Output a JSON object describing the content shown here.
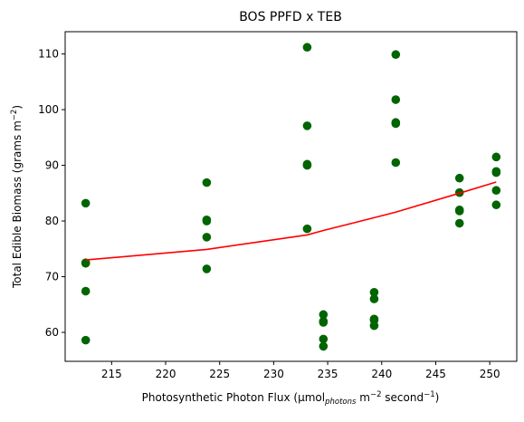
{
  "chart_data": {
    "type": "scatter",
    "title": "BOS PPFD x TEB",
    "xlabel": {
      "text": "Photosynthetic Photon Flux (μmol",
      "sub": "photons",
      "mid": " m",
      "sup1": "−2",
      "mid2": " second",
      "sup2": "−1",
      "end": ")"
    },
    "ylabel": {
      "text": "Total Edible Biomass (grams m",
      "sup": "−2",
      "end": ")"
    },
    "xlim": [
      210.7,
      252.5
    ],
    "ylim": [
      54.8,
      114
    ],
    "xticks": [
      215,
      220,
      225,
      230,
      235,
      240,
      245,
      250
    ],
    "yticks": [
      60,
      70,
      80,
      90,
      100,
      110
    ],
    "grid": false,
    "colors": {
      "points": "#006400",
      "fit": "#ff0000"
    },
    "series": [
      {
        "kind": "points",
        "points": [
          [
            212.6,
            83.2
          ],
          [
            212.6,
            72.5
          ],
          [
            212.6,
            72.4
          ],
          [
            212.6,
            67.4
          ],
          [
            212.6,
            58.6
          ],
          [
            223.8,
            86.9
          ],
          [
            223.8,
            80.2
          ],
          [
            223.8,
            80.0
          ],
          [
            223.8,
            77.1
          ],
          [
            223.8,
            71.4
          ],
          [
            233.1,
            111.2
          ],
          [
            233.1,
            97.1
          ],
          [
            233.1,
            90.2
          ],
          [
            233.1,
            90.0
          ],
          [
            233.1,
            78.6
          ],
          [
            234.6,
            63.2
          ],
          [
            234.6,
            62.0
          ],
          [
            234.6,
            61.8
          ],
          [
            234.6,
            58.8
          ],
          [
            234.6,
            57.5
          ],
          [
            239.3,
            67.2
          ],
          [
            239.3,
            66.0
          ],
          [
            239.3,
            62.4
          ],
          [
            239.3,
            62.2
          ],
          [
            239.3,
            61.2
          ],
          [
            241.3,
            109.9
          ],
          [
            241.3,
            101.8
          ],
          [
            241.3,
            97.7
          ],
          [
            241.3,
            97.5
          ],
          [
            241.3,
            90.5
          ],
          [
            247.2,
            87.7
          ],
          [
            247.2,
            85.1
          ],
          [
            247.2,
            82.0
          ],
          [
            247.2,
            81.8
          ],
          [
            247.2,
            79.6
          ],
          [
            250.6,
            91.5
          ],
          [
            250.6,
            88.9
          ],
          [
            250.6,
            88.7
          ],
          [
            250.6,
            85.5
          ],
          [
            250.6,
            82.9
          ]
        ]
      },
      {
        "kind": "line",
        "points": [
          [
            212.6,
            73.0
          ],
          [
            223.8,
            74.9
          ],
          [
            233.1,
            77.5
          ],
          [
            234.6,
            78.3
          ],
          [
            239.3,
            80.6
          ],
          [
            241.3,
            81.6
          ],
          [
            247.2,
            85.0
          ],
          [
            250.6,
            87.0
          ]
        ]
      }
    ]
  }
}
